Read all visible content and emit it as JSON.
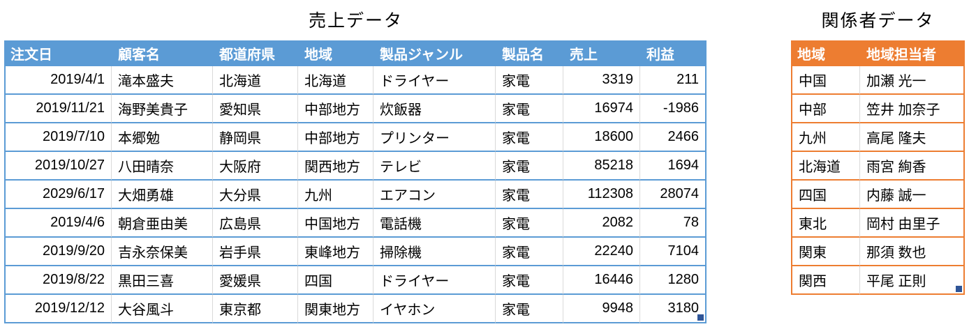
{
  "colors": {
    "--page-bg": "#FFFFFF",
    "--body-text": "#000000",
    "--header-text": "#FFFFFF",
    "--sales-header-bg": "#5B9BD5",
    "--sales-border": "#5B9BD5",
    "--staff-header-bg": "#ED7D31",
    "--staff-border": "#ED7D31",
    "--cell-divider": "#D9D9D9",
    "--handle": "#2F5597"
  },
  "sales_table": {
    "title": "売上データ",
    "columns": [
      "注文日",
      "顧客名",
      "都道府県",
      "地域",
      "製品ジャンル",
      "製品名",
      "売上",
      "利益"
    ],
    "rows": [
      [
        "2019/4/1",
        "滝本盛夫",
        "北海道",
        "北海道",
        "ドライヤー",
        "家電",
        "3319",
        "211"
      ],
      [
        "2019/11/21",
        "海野美貴子",
        "愛知県",
        "中部地方",
        "炊飯器",
        "家電",
        "16974",
        "-1986"
      ],
      [
        "2019/7/10",
        "本郷勉",
        "静岡県",
        "中部地方",
        "プリンター",
        "家電",
        "18600",
        "2466"
      ],
      [
        "2019/10/27",
        "八田晴奈",
        "大阪府",
        "関西地方",
        "テレビ",
        "家電",
        "85218",
        "1694"
      ],
      [
        "2029/6/17",
        "大畑勇雄",
        "大分県",
        "九州",
        "エアコン",
        "家電",
        "112308",
        "28074"
      ],
      [
        "2019/4/6",
        "朝倉亜由美",
        "広島県",
        "中国地方",
        "電話機",
        "家電",
        "2082",
        "78"
      ],
      [
        "2019/9/20",
        "吉永奈保美",
        "岩手県",
        "東峰地方",
        "掃除機",
        "家電",
        "22240",
        "7104"
      ],
      [
        "2019/8/22",
        "黒田三喜",
        "愛媛県",
        "四国",
        "ドライヤー",
        "家電",
        "16446",
        "1280"
      ],
      [
        "2019/12/12",
        "大谷風斗",
        "東京都",
        "関東地方",
        "イヤホン",
        "家電",
        "9948",
        "3180"
      ]
    ]
  },
  "staff_table": {
    "title": "関係者データ",
    "columns": [
      "地域",
      "地域担当者"
    ],
    "rows": [
      [
        "中国",
        "加瀬 光一"
      ],
      [
        "中部",
        "笠井 加奈子"
      ],
      [
        "九州",
        "高尾 隆夫"
      ],
      [
        "北海道",
        "雨宮 絢香"
      ],
      [
        "四国",
        "内藤 誠一"
      ],
      [
        "東北",
        "岡村 由里子"
      ],
      [
        "関東",
        "那須 数也"
      ],
      [
        "関西",
        "平尾 正則"
      ]
    ]
  }
}
